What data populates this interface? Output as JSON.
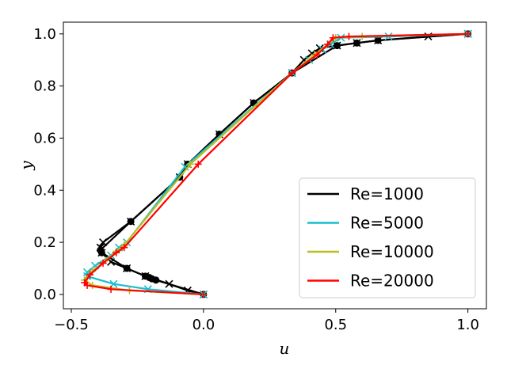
{
  "chart_data": {
    "type": "line",
    "title": "",
    "xlabel": "u",
    "ylabel": "y",
    "xlim": [
      -0.53,
      1.07
    ],
    "ylim": [
      -0.055,
      1.045
    ],
    "xticks": [
      -0.5,
      0.0,
      0.5,
      1.0
    ],
    "xtick_labels": [
      "−0.5",
      "0.0",
      "0.5",
      "1.0"
    ],
    "yticks": [
      0.0,
      0.2,
      0.4,
      0.6,
      0.8,
      1.0
    ],
    "ytick_labels": [
      "0.0",
      "0.2",
      "0.4",
      "0.6",
      "0.8",
      "1.0"
    ],
    "grid": false,
    "legend_position": "lower-right",
    "reference": {
      "name": "reference (dots)",
      "color": "#000000",
      "marker": "circle",
      "points": [
        [
          0.0,
          0.0
        ],
        [
          -0.18,
          0.055
        ],
        [
          -0.195,
          0.06
        ],
        [
          -0.205,
          0.065
        ],
        [
          -0.22,
          0.07
        ],
        [
          -0.29,
          0.1
        ],
        [
          -0.385,
          0.16
        ],
        [
          -0.39,
          0.17
        ],
        [
          -0.275,
          0.28
        ],
        [
          -0.09,
          0.45
        ],
        [
          -0.06,
          0.5
        ],
        [
          0.06,
          0.615
        ],
        [
          0.19,
          0.735
        ],
        [
          0.335,
          0.85
        ],
        [
          0.505,
          0.955
        ],
        [
          0.58,
          0.965
        ],
        [
          0.66,
          0.975
        ],
        [
          1.0,
          1.0
        ]
      ]
    },
    "series": [
      {
        "name": "Re=1000",
        "color": "#000000",
        "marker": "x",
        "points": [
          [
            0.0,
            0.0
          ],
          [
            -0.06,
            0.015
          ],
          [
            -0.13,
            0.04
          ],
          [
            -0.22,
            0.07
          ],
          [
            -0.29,
            0.1
          ],
          [
            -0.35,
            0.125
          ],
          [
            -0.385,
            0.16
          ],
          [
            -0.39,
            0.18
          ],
          [
            -0.38,
            0.2
          ],
          [
            -0.275,
            0.28
          ],
          [
            -0.09,
            0.45
          ],
          [
            -0.06,
            0.5
          ],
          [
            0.06,
            0.615
          ],
          [
            0.19,
            0.735
          ],
          [
            0.335,
            0.85
          ],
          [
            0.38,
            0.9
          ],
          [
            0.41,
            0.925
          ],
          [
            0.44,
            0.945
          ],
          [
            0.505,
            0.955
          ],
          [
            0.58,
            0.965
          ],
          [
            0.66,
            0.975
          ],
          [
            0.85,
            0.99
          ],
          [
            1.0,
            1.0
          ]
        ]
      },
      {
        "name": "Re=5000",
        "color": "#17becf",
        "marker": "x",
        "points": [
          [
            0.0,
            0.0
          ],
          [
            -0.21,
            0.02
          ],
          [
            -0.34,
            0.04
          ],
          [
            -0.44,
            0.07
          ],
          [
            -0.44,
            0.085
          ],
          [
            -0.41,
            0.11
          ],
          [
            -0.35,
            0.15
          ],
          [
            -0.32,
            0.18
          ],
          [
            -0.29,
            0.2
          ],
          [
            -0.07,
            0.49
          ],
          [
            0.335,
            0.85
          ],
          [
            0.4,
            0.9
          ],
          [
            0.45,
            0.94
          ],
          [
            0.48,
            0.96
          ],
          [
            0.52,
            0.985
          ],
          [
            0.7,
            0.99
          ],
          [
            1.0,
            1.0
          ]
        ]
      },
      {
        "name": "Re=10000",
        "color": "#bcbd22",
        "marker": "+",
        "points": [
          [
            0.0,
            0.0
          ],
          [
            -0.28,
            0.015
          ],
          [
            -0.42,
            0.035
          ],
          [
            -0.45,
            0.055
          ],
          [
            -0.42,
            0.09
          ],
          [
            -0.37,
            0.13
          ],
          [
            -0.33,
            0.165
          ],
          [
            -0.3,
            0.19
          ],
          [
            -0.05,
            0.5
          ],
          [
            0.335,
            0.85
          ],
          [
            0.42,
            0.92
          ],
          [
            0.47,
            0.96
          ],
          [
            0.5,
            0.985
          ],
          [
            0.6,
            0.99
          ],
          [
            1.0,
            1.0
          ]
        ]
      },
      {
        "name": "Re=20000",
        "color": "#ff0000",
        "marker": "+",
        "points": [
          [
            0.0,
            0.0
          ],
          [
            -0.35,
            0.02
          ],
          [
            -0.44,
            0.035
          ],
          [
            -0.45,
            0.045
          ],
          [
            -0.43,
            0.075
          ],
          [
            -0.38,
            0.12
          ],
          [
            -0.33,
            0.16
          ],
          [
            -0.3,
            0.18
          ],
          [
            -0.02,
            0.5
          ],
          [
            0.335,
            0.85
          ],
          [
            0.43,
            0.92
          ],
          [
            0.47,
            0.96
          ],
          [
            0.49,
            0.985
          ],
          [
            0.55,
            0.99
          ],
          [
            1.0,
            1.0
          ]
        ]
      }
    ]
  }
}
